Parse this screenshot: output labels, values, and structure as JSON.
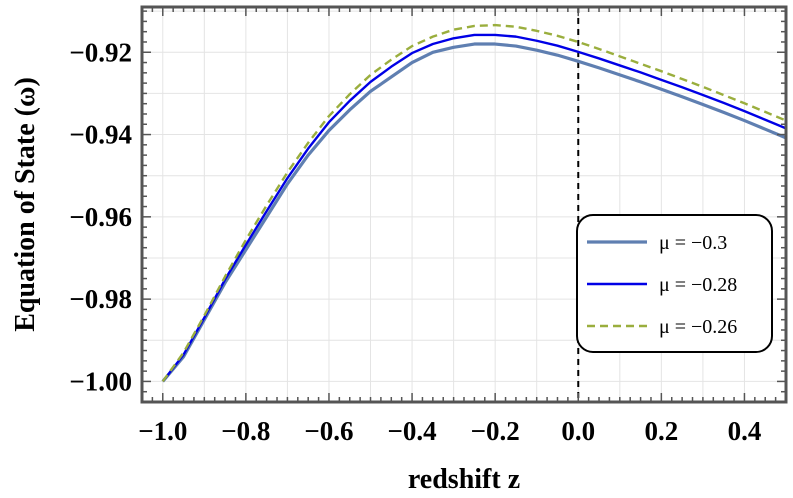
{
  "chart_data": {
    "type": "line",
    "xlabel": "redshift z",
    "ylabel": "Equation of State (ω)",
    "xlim": [
      -1.05,
      0.5
    ],
    "ylim": [
      -1.005,
      -0.909
    ],
    "x_ticks": [
      -1.0,
      -0.8,
      -0.6,
      -0.4,
      -0.2,
      0.0,
      0.2,
      0.4
    ],
    "x_tick_labels": [
      "−1.0",
      "−0.8",
      "−0.6",
      "−0.4",
      "−0.2",
      "0.0",
      "0.2",
      "0.4"
    ],
    "y_ticks": [
      -1.0,
      -0.98,
      -0.96,
      -0.94,
      -0.92
    ],
    "y_tick_labels": [
      "−1.00",
      "−0.98",
      "−0.96",
      "−0.94",
      "−0.92"
    ],
    "grid": true,
    "legend_position": "bottom-right",
    "reference_line": {
      "x": 0.0,
      "style": "dashed",
      "color": "#000000"
    },
    "series": [
      {
        "name": "μ = −0.3",
        "color": "#5f7fb1",
        "dash": "solid",
        "x": [
          -1.0,
          -0.95,
          -0.9,
          -0.85,
          -0.8,
          -0.75,
          -0.7,
          -0.65,
          -0.6,
          -0.55,
          -0.5,
          -0.45,
          -0.4,
          -0.35,
          -0.3,
          -0.25,
          -0.2,
          -0.15,
          -0.1,
          -0.05,
          0.0,
          0.05,
          0.1,
          0.15,
          0.2,
          0.25,
          0.3,
          0.35,
          0.4,
          0.45,
          0.5
        ],
        "values": [
          -1.0,
          -0.994,
          -0.985,
          -0.976,
          -0.968,
          -0.96,
          -0.952,
          -0.945,
          -0.939,
          -0.934,
          -0.9295,
          -0.926,
          -0.9225,
          -0.92,
          -0.9188,
          -0.918,
          -0.918,
          -0.9185,
          -0.9195,
          -0.9207,
          -0.9222,
          -0.9238,
          -0.9255,
          -0.9272,
          -0.929,
          -0.9308,
          -0.9327,
          -0.9346,
          -0.9366,
          -0.9387,
          -0.9408
        ]
      },
      {
        "name": "μ = −0.28",
        "color": "#0000e6",
        "dash": "solid",
        "x": [
          -1.0,
          -0.95,
          -0.9,
          -0.85,
          -0.8,
          -0.75,
          -0.7,
          -0.65,
          -0.6,
          -0.55,
          -0.5,
          -0.45,
          -0.4,
          -0.35,
          -0.3,
          -0.25,
          -0.2,
          -0.15,
          -0.1,
          -0.05,
          0.0,
          0.05,
          0.1,
          0.15,
          0.2,
          0.25,
          0.3,
          0.35,
          0.4,
          0.45,
          0.5
        ],
        "values": [
          -1.0,
          -0.9935,
          -0.9845,
          -0.9752,
          -0.9668,
          -0.9586,
          -0.9506,
          -0.9434,
          -0.937,
          -0.9318,
          -0.9272,
          -0.9235,
          -0.9202,
          -0.918,
          -0.9166,
          -0.9158,
          -0.9158,
          -0.9162,
          -0.9172,
          -0.9184,
          -0.9199,
          -0.9215,
          -0.9232,
          -0.9249,
          -0.9267,
          -0.9285,
          -0.9304,
          -0.9323,
          -0.9343,
          -0.9364,
          -0.9385
        ]
      },
      {
        "name": "μ = −0.26",
        "color": "#9aae3d",
        "dash": "dashed",
        "x": [
          -1.0,
          -0.95,
          -0.9,
          -0.85,
          -0.8,
          -0.75,
          -0.7,
          -0.65,
          -0.6,
          -0.55,
          -0.5,
          -0.45,
          -0.4,
          -0.35,
          -0.3,
          -0.25,
          -0.2,
          -0.15,
          -0.1,
          -0.05,
          0.0,
          0.05,
          0.1,
          0.15,
          0.2,
          0.25,
          0.3,
          0.35,
          0.4,
          0.45,
          0.5
        ],
        "values": [
          -1.0,
          -0.993,
          -0.984,
          -0.9745,
          -0.9656,
          -0.9572,
          -0.9492,
          -0.942,
          -0.9355,
          -0.9302,
          -0.9255,
          -0.9218,
          -0.9185,
          -0.9162,
          -0.9145,
          -0.9136,
          -0.9134,
          -0.9138,
          -0.9148,
          -0.916,
          -0.9175,
          -0.9192,
          -0.921,
          -0.9228,
          -0.9246,
          -0.9265,
          -0.9284,
          -0.9304,
          -0.9324,
          -0.9345,
          -0.9366
        ]
      }
    ]
  }
}
